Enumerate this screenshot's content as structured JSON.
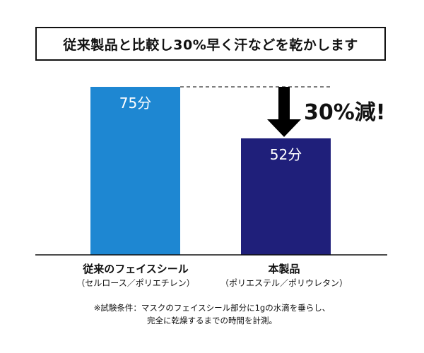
{
  "chart_data": {
    "type": "bar",
    "title": "従来製品と比較し30%早く汗などを乾かします",
    "categories": [
      "従来のフェイスシール",
      "本製品"
    ],
    "category_subtitles": [
      "（セルロース／ポリエチレン）",
      "（ポリエステル／ポリウレタン）"
    ],
    "values": [
      75,
      52
    ],
    "value_labels": [
      "75分",
      "52分"
    ],
    "bar_colors": [
      "#1e87d2",
      "#1f1f7a"
    ],
    "ylim": [
      0,
      80
    ],
    "grid": false,
    "annotation": "30%減!"
  },
  "footnote": {
    "line1": "※試験条件：マスクのフェイスシール部分に1gの水滴を垂らし、",
    "line2": "完全に乾燥するまでの時間を計測。"
  }
}
